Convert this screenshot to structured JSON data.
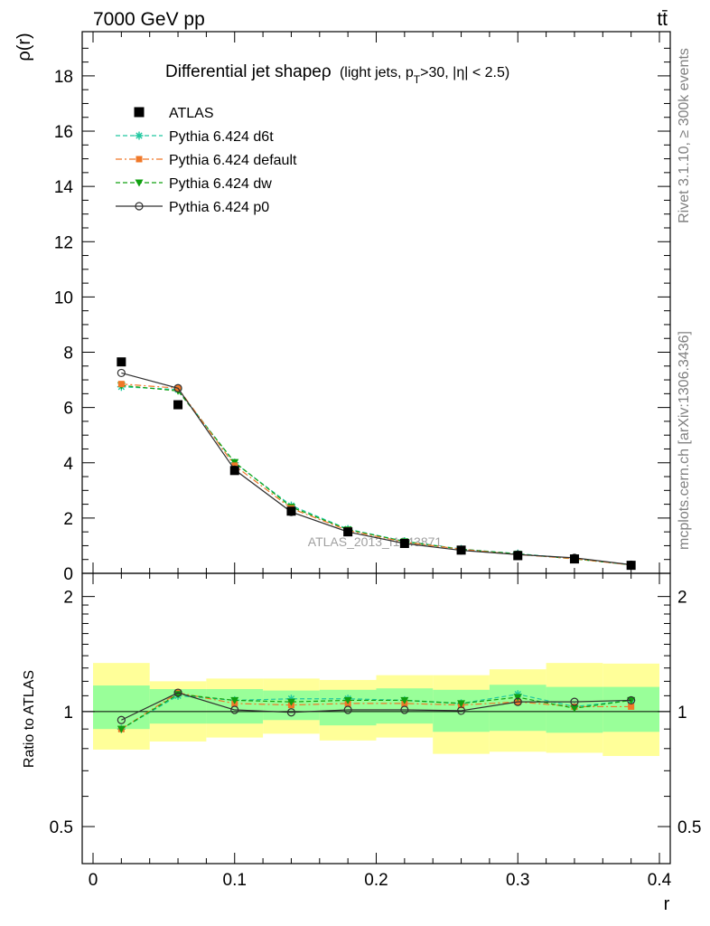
{
  "header": {
    "energy_label": "7000 GeV pp",
    "process_label": "tt̄"
  },
  "side_labels": {
    "rivet": "Rivet 3.1.10, ≥ 300k events",
    "mcplots": "mcplots.cern.ch [arXiv:1306.3436]"
  },
  "chart_data": [
    {
      "type": "scatter",
      "panel": "main",
      "title": "Differential jet shapeρ (light jets, p_T>30, |η| < 2.5)",
      "title_parts": {
        "main": "Differential jet shapeρ",
        "a": "(light jets, p",
        "sub": "T",
        "b": ">30, |η| < 2.5)"
      },
      "watermark": "ATLAS_2013_I1243871",
      "ylabel": "ρ(r)",
      "xlabel": "",
      "xlim": [
        0,
        0.4
      ],
      "ylim": [
        0,
        19.6
      ],
      "yticks": [
        0,
        2,
        4,
        6,
        8,
        10,
        12,
        14,
        16,
        18
      ],
      "ytick_labels": [
        "0",
        "2",
        "4",
        "6",
        "8",
        "10",
        "12",
        "14",
        "16",
        "18"
      ],
      "grid": false,
      "legend_position": "top-left",
      "x": [
        0.02,
        0.06,
        0.1,
        0.14,
        0.18,
        0.22,
        0.26,
        0.3,
        0.34,
        0.38
      ],
      "series": [
        {
          "name": "ATLAS",
          "color": "#000000",
          "marker": "square",
          "line": "none",
          "values": [
            7.65,
            6.1,
            3.72,
            2.25,
            1.5,
            1.08,
            0.84,
            0.64,
            0.52,
            0.29
          ]
        },
        {
          "name": "Pythia 6.424 d6t",
          "color": "#20c8a0",
          "marker": "star",
          "line": "dashed",
          "values": [
            6.75,
            6.65,
            4.0,
            2.45,
            1.6,
            1.16,
            0.88,
            0.71,
            0.53,
            0.31
          ]
        },
        {
          "name": "Pythia 6.424 default",
          "color": "#f07828",
          "marker": "square-small",
          "line": "dashdot",
          "values": [
            6.85,
            6.7,
            3.9,
            2.35,
            1.55,
            1.13,
            0.87,
            0.68,
            0.53,
            0.3
          ]
        },
        {
          "name": "Pythia 6.424 dw",
          "color": "#10a010",
          "marker": "triangle-down",
          "line": "dashed",
          "values": [
            6.8,
            6.6,
            4.02,
            2.4,
            1.58,
            1.15,
            0.87,
            0.7,
            0.52,
            0.31
          ]
        },
        {
          "name": "Pythia 6.424 p0",
          "color": "#303030",
          "marker": "open-circle",
          "line": "solid",
          "values": [
            7.25,
            6.7,
            3.75,
            2.22,
            1.5,
            1.08,
            0.83,
            0.68,
            0.56,
            0.31
          ]
        }
      ]
    },
    {
      "type": "line",
      "panel": "ratio",
      "ylabel": "Ratio to ATLAS",
      "xlabel": "r",
      "xlim": [
        0,
        0.4
      ],
      "ylim": [
        0.4,
        2.3
      ],
      "yticks": [
        0.5,
        1,
        2
      ],
      "ytick_labels": [
        "0.5",
        "1",
        "2"
      ],
      "xticks": [
        0,
        0.1,
        0.2,
        0.3,
        0.4
      ],
      "xtick_labels": [
        "0",
        "0.1",
        "0.2",
        "0.3",
        "0.4"
      ],
      "bin_edges": [
        0.0,
        0.04,
        0.08,
        0.12,
        0.16,
        0.2,
        0.24,
        0.28,
        0.32,
        0.36,
        0.4
      ],
      "band_total": {
        "color": "#ffff99",
        "lo": [
          0.795,
          0.835,
          0.855,
          0.875,
          0.84,
          0.855,
          0.775,
          0.785,
          0.78,
          0.765
        ],
        "hi": [
          1.34,
          1.2,
          1.22,
          1.22,
          1.21,
          1.245,
          1.245,
          1.29,
          1.34,
          1.335
        ]
      },
      "band_stat": {
        "color": "#99ff99",
        "lo": [
          0.9,
          0.93,
          0.93,
          0.95,
          0.92,
          0.93,
          0.885,
          0.89,
          0.88,
          0.885
        ],
        "hi": [
          1.17,
          1.145,
          1.145,
          1.135,
          1.14,
          1.15,
          1.14,
          1.175,
          1.16,
          1.16
        ]
      },
      "x": [
        0.02,
        0.06,
        0.1,
        0.14,
        0.18,
        0.22,
        0.26,
        0.3,
        0.34,
        0.38
      ],
      "series": [
        {
          "name": "Pythia 6.424 d6t",
          "color": "#20c8a0",
          "marker": "star",
          "line": "dashed",
          "values": [
            0.9,
            1.1,
            1.07,
            1.08,
            1.08,
            1.07,
            1.05,
            1.11,
            1.03,
            1.07
          ]
        },
        {
          "name": "Pythia 6.424 default",
          "color": "#f07828",
          "marker": "square-small",
          "line": "dashdot",
          "values": [
            0.9,
            1.12,
            1.05,
            1.04,
            1.05,
            1.05,
            1.04,
            1.06,
            1.03,
            1.03
          ]
        },
        {
          "name": "Pythia 6.424 dw",
          "color": "#10a010",
          "marker": "triangle-down",
          "line": "dashed",
          "values": [
            0.9,
            1.11,
            1.07,
            1.06,
            1.07,
            1.07,
            1.05,
            1.09,
            1.02,
            1.07
          ]
        },
        {
          "name": "Pythia 6.424 p0",
          "color": "#303030",
          "marker": "open-circle",
          "line": "solid",
          "values": [
            0.95,
            1.12,
            1.01,
            0.995,
            1.01,
            1.01,
            1.005,
            1.06,
            1.06,
            1.07
          ]
        }
      ]
    }
  ]
}
